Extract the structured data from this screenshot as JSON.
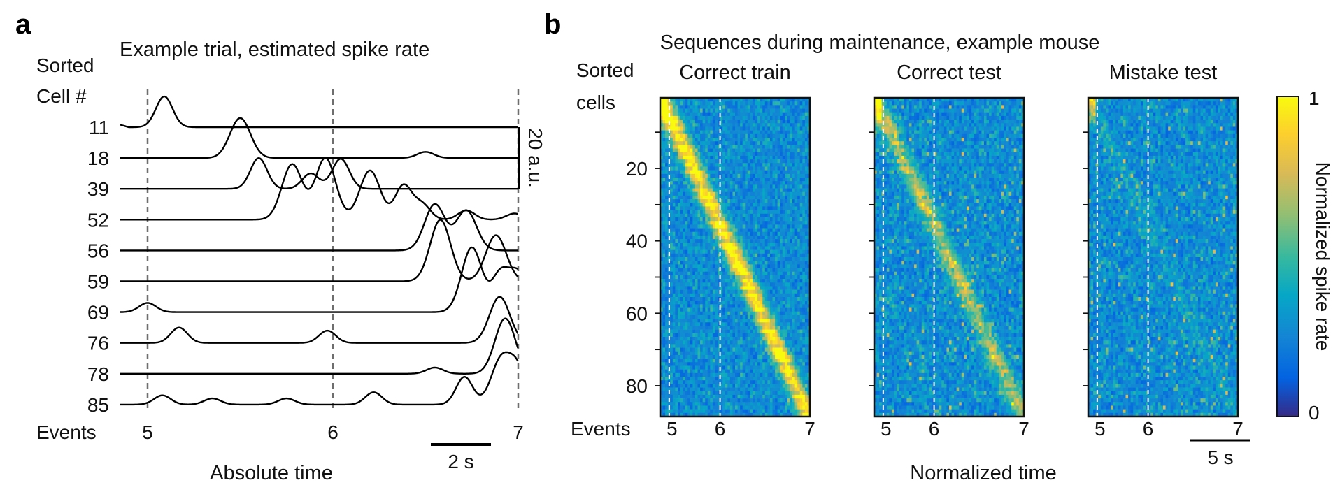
{
  "panel_a": {
    "letter": "a",
    "title": "Example trial, estimated spike rate",
    "ylabel_line1": "Sorted",
    "ylabel_line2": "Cell #",
    "xlabel": "Absolute time",
    "events_label": "Events",
    "scale_time": "2 s",
    "scale_amp": "20 a.u."
  },
  "panel_b": {
    "letter": "b",
    "title": "Sequences during maintenance, example mouse",
    "ylabel_line1": "Sorted",
    "ylabel_line2": "cells",
    "xlabel": "Normalized time",
    "events_label": "Events",
    "scale_time": "5 s",
    "colorbar_label": "Normalized spike rate",
    "colorbar_max": "1",
    "colorbar_min": "0"
  },
  "colors": {
    "trace": "#000000",
    "dashed_line": "#6e6e6e",
    "heatmap_event_line": "#ffffff",
    "colormap": [
      "#352a87",
      "#0363e1",
      "#1485d4",
      "#06a7c6",
      "#38b99e",
      "#92bf73",
      "#d9ba56",
      "#fcce2e",
      "#f9fb0e"
    ]
  },
  "chart_data": [
    {
      "type": "line",
      "panel": "a",
      "title": "Example trial, estimated spike rate",
      "xlabel": "Absolute time",
      "ylabel": "Sorted Cell #",
      "x_ticks": [
        "5",
        "6",
        "7"
      ],
      "xlim": [
        4.78,
        7.0
      ],
      "event_lines": [
        5,
        6,
        7
      ],
      "scale_bar_time_s": 2,
      "scale_bar_amplitude_au": 20,
      "series": [
        {
          "name": "11",
          "peaks": [
            [
              5.09,
              10
            ]
          ]
        },
        {
          "name": "18",
          "peaks": [
            [
              5.5,
              13
            ],
            [
              6.5,
              2
            ]
          ]
        },
        {
          "name": "39",
          "peaks": [
            [
              5.6,
              10
            ],
            [
              5.88,
              5
            ],
            [
              6.05,
              6
            ],
            [
              6.03,
              4
            ]
          ]
        },
        {
          "name": "52",
          "peaks": [
            [
              5.78,
              18
            ],
            [
              5.96,
              20
            ],
            [
              6.2,
              16
            ],
            [
              6.38,
              11
            ],
            [
              6.48,
              5
            ],
            [
              6.72,
              3
            ],
            [
              6.98,
              2
            ]
          ]
        },
        {
          "name": "56",
          "peaks": [
            [
              6.55,
              15
            ],
            [
              6.72,
              13
            ]
          ]
        },
        {
          "name": "59",
          "peaks": [
            [
              6.58,
              20
            ],
            [
              6.88,
              15
            ]
          ]
        },
        {
          "name": "69",
          "peaks": [
            [
              5.0,
              3
            ],
            [
              6.75,
              21
            ],
            [
              6.9,
              11
            ],
            [
              7.0,
              13
            ]
          ]
        },
        {
          "name": "76",
          "peaks": [
            [
              5.17,
              5
            ],
            [
              5.97,
              4
            ],
            [
              6.9,
              15
            ]
          ]
        },
        {
          "name": "78",
          "peaks": [
            [
              6.93,
              18
            ],
            [
              6.55,
              2
            ]
          ]
        },
        {
          "name": "85",
          "peaks": [
            [
              5.08,
              3
            ],
            [
              5.35,
              2
            ],
            [
              5.75,
              2
            ],
            [
              6.22,
              4
            ],
            [
              6.71,
              9
            ],
            [
              6.91,
              15
            ],
            [
              7.0,
              10
            ]
          ]
        }
      ]
    },
    {
      "type": "heatmap",
      "panel": "b",
      "title": "Sequences during maintenance, example mouse",
      "xlabel": "Normalized time",
      "ylabel": "Sorted cells",
      "colorbar": {
        "label": "Normalized spike rate",
        "range": [
          0,
          1
        ]
      },
      "n_cells": 88,
      "y_ticks": [
        20,
        40,
        60,
        80
      ],
      "event_ticks": [
        "5",
        "6",
        "7"
      ],
      "scale_bar_time_s": 5,
      "subplots": [
        {
          "name": "Correct train",
          "sequence_strength": 1.0
        },
        {
          "name": "Correct test",
          "sequence_strength": 0.55
        },
        {
          "name": "Mistake test",
          "sequence_strength": 0.12
        }
      ]
    }
  ]
}
